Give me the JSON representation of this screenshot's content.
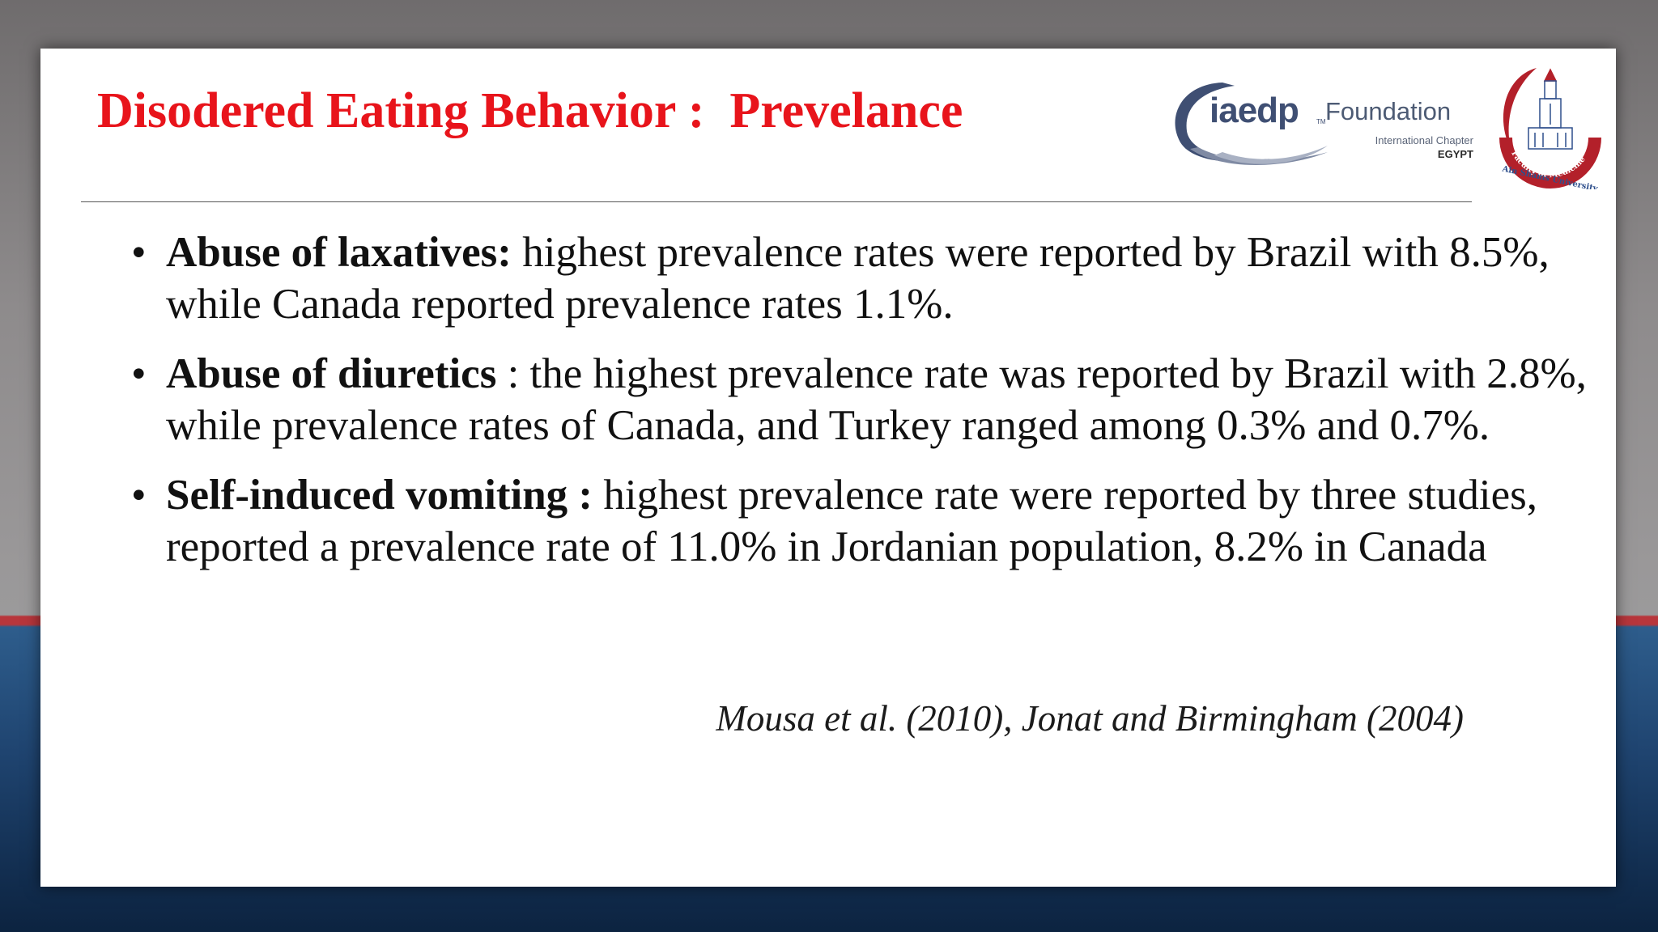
{
  "slide": {
    "title": "Disodered Eating Behavior :  Prevelance",
    "logos": {
      "iaedp": {
        "word": "iaedp",
        "tm": "TM",
        "foundation": "Foundation",
        "chapter": "International Chapter",
        "country": "EGYPT",
        "colors": [
          "#3f4f73",
          "#7f8aa3"
        ]
      },
      "asu": {
        "ring_text": "Faculty of Medicine",
        "bottom_text": "Ain Shams University",
        "colors": [
          "#b3202a",
          "#2e4f8c"
        ]
      }
    },
    "bullets": [
      {
        "heading": "Abuse of laxatives:",
        "text": " highest prevalence rates were reported by Brazil with 8.5%, while Canada reported prevalence rates  1.1%."
      },
      {
        "heading": "Abuse of  diuretics",
        "text": " : the highest prevalence rate was reported by Brazil with 2.8%, while prevalence rates of  Canada,  and Turkey ranged among 0.3% and 0.7%."
      },
      {
        "heading": " Self-induced vomiting :",
        "text": " highest prevalence rate were reported by three studies,  reported a prevalence rate of 11.0% in Jordanian population,  8.2% in Canada"
      }
    ],
    "bullet_symbol": "•",
    "citation": "Mousa et al. (2010), Jonat and Birmingham (2004)",
    "colors": {
      "title": "#e8141b",
      "text": "#111111",
      "background_stripe": "#b8363c",
      "background_blue": "#1f4470"
    }
  }
}
